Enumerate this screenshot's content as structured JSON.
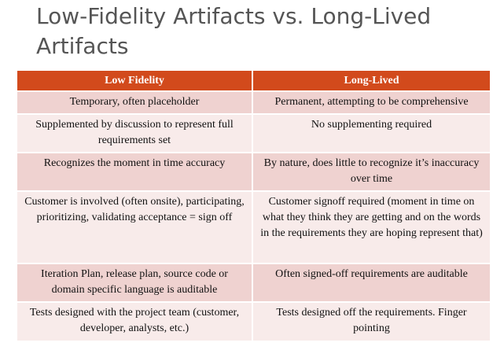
{
  "slide": {
    "title": "Low-Fidelity Artifacts vs. Long-Lived Artifacts"
  },
  "table": {
    "headers": [
      "Low  Fidelity",
      "Long-Lived"
    ],
    "rows": [
      [
        "Temporary, often placeholder",
        "Permanent, attempting to be comprehensive"
      ],
      [
        "Supplemented by discussion to represent full requirements set",
        "No supplementing required"
      ],
      [
        "Recognizes the moment in time accuracy",
        "By nature, does little to recognize it’s inaccuracy over time"
      ],
      [
        "Customer is involved (often onsite), participating, prioritizing, validating acceptance = sign off",
        "Customer signoff required (moment in time on what they think they are getting and on the words in the requirements they are hoping represent that)"
      ],
      [
        "Iteration Plan, release plan, source code or domain specific language is auditable",
        "Often signed-off requirements are auditable"
      ],
      [
        "Tests designed with the project team (customer, developer, analysts, etc.)",
        "Tests designed off the requirements. Finger pointing"
      ]
    ]
  },
  "colors": {
    "header_bg": "#d24a1c",
    "row_odd_bg": "#efd2d0",
    "row_even_bg": "#f8ebea",
    "title_text": "#555555"
  }
}
